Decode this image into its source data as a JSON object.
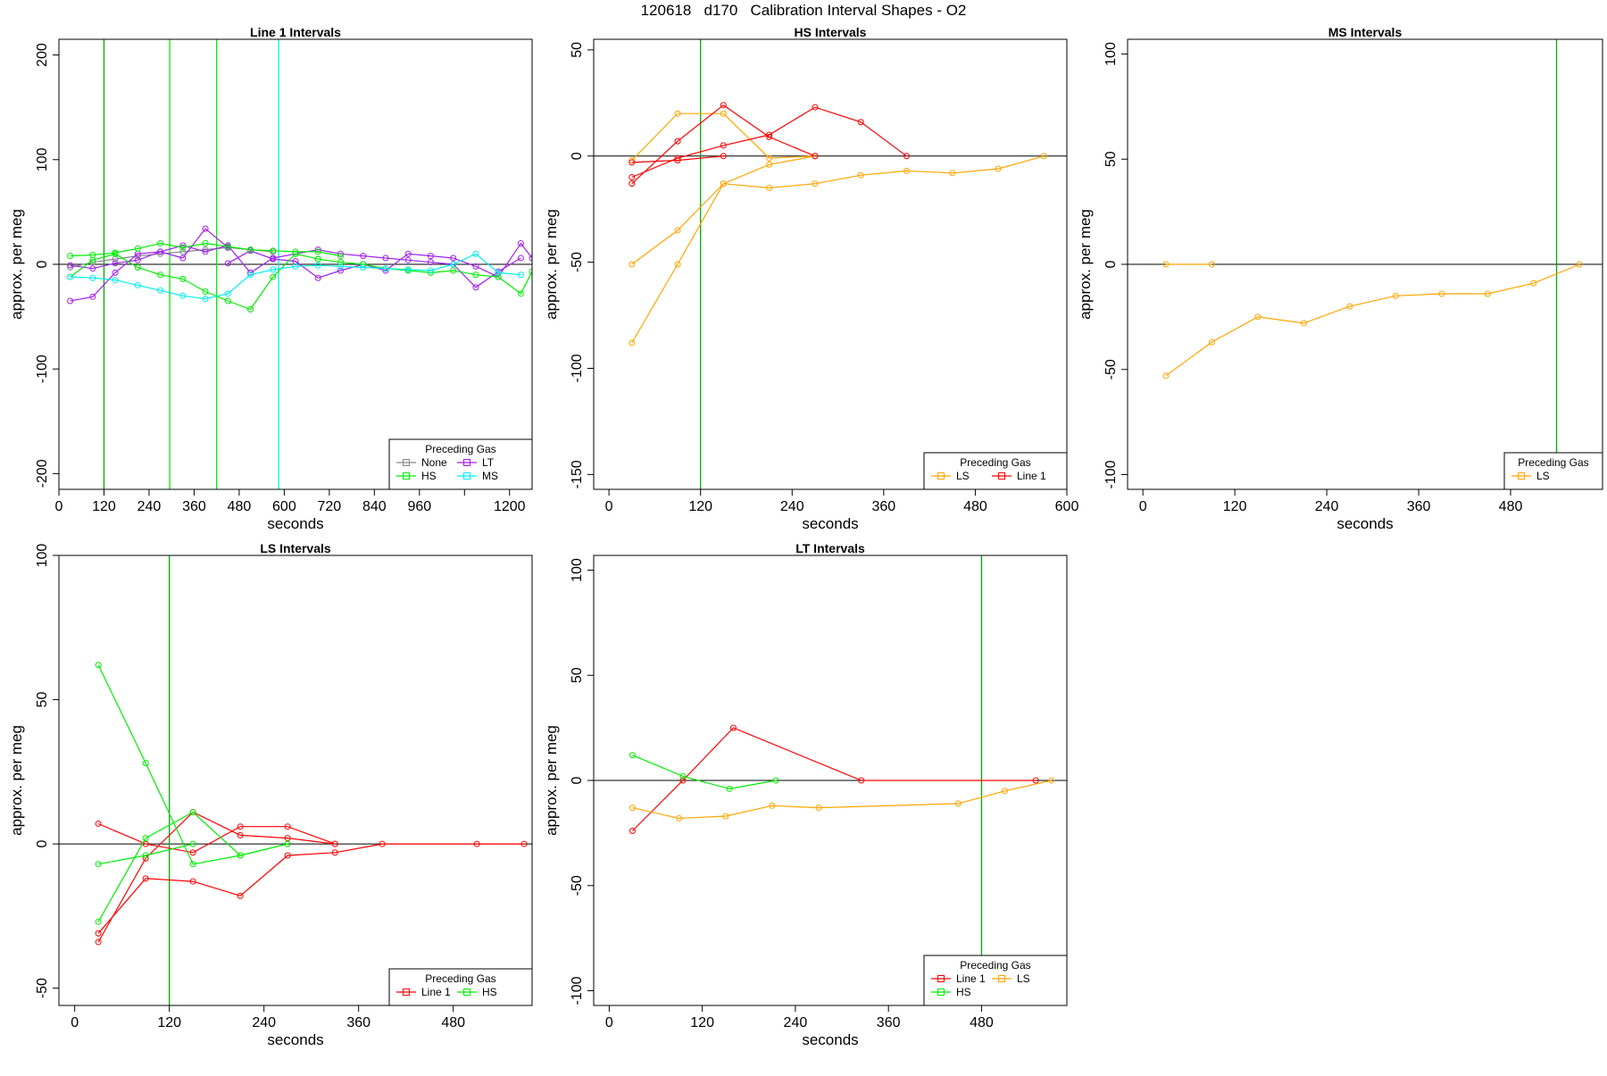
{
  "figure_title": "120618   d170   Calibration Interval Shapes - O2",
  "colors": {
    "None": "#888888",
    "LT": "#a020f0",
    "HS": "#00ee00",
    "MS": "#00eeee",
    "LS": "#ffa500",
    "Line 1": "#ff0000",
    "axis": "#000000",
    "grid": "#000000"
  },
  "chart_data": [
    {
      "type": "line",
      "title": "Line 1 Intervals",
      "xlabel": "seconds",
      "ylabel": "approx. per meg",
      "xlim": [
        0,
        1260
      ],
      "ylim": [
        -215,
        215
      ],
      "xticks": [
        0,
        120,
        240,
        360,
        480,
        600,
        720,
        840,
        960,
        1080,
        1200
      ],
      "xticklabels": [
        "0",
        "120",
        "240",
        "360",
        "480",
        "600",
        "720",
        "840",
        "960",
        "",
        "1200"
      ],
      "yticks": [
        -200,
        -100,
        0,
        100,
        200
      ],
      "vlines": [
        {
          "x": 120,
          "color": "#00aa00"
        },
        {
          "x": 295,
          "color": "#00ee00"
        },
        {
          "x": 420,
          "color": "#00ee00"
        },
        {
          "x": 585,
          "color": "#00eeee"
        }
      ],
      "legend": {
        "title": "Preceding Gas",
        "position": "bottom-right",
        "entries": [
          "None",
          "LT",
          "HS",
          "MS"
        ],
        "cols": 2
      },
      "series": [
        {
          "name": "None",
          "x": [
            30,
            90,
            150,
            210,
            270,
            330,
            390,
            450,
            510,
            570
          ],
          "y": [
            -3,
            2,
            5,
            8,
            10,
            12,
            14,
            16,
            14,
            12
          ]
        },
        {
          "name": "LT",
          "x": [
            30,
            90,
            150,
            210,
            270,
            330,
            390,
            450
          ],
          "y": [
            -35,
            -31,
            -8,
            10,
            12,
            6,
            34,
            16
          ]
        },
        {
          "name": "LT",
          "x": [
            30,
            90,
            150,
            210,
            270,
            330,
            390,
            450,
            510,
            570,
            630,
            690,
            750,
            810,
            870,
            930,
            990,
            1050,
            1110,
            1170,
            1230
          ],
          "y": [
            -1,
            -4,
            1,
            4,
            12,
            18,
            12,
            18,
            -8,
            6,
            10,
            14,
            10,
            8,
            6,
            4,
            2,
            0,
            -22,
            -7,
            6
          ]
        },
        {
          "name": "LT",
          "x": [
            450,
            510,
            570,
            630,
            690,
            750,
            810,
            870,
            930,
            990,
            1050,
            1110,
            1170,
            1230,
            1260
          ],
          "y": [
            1,
            13,
            5,
            3,
            -13,
            -6,
            0,
            -6,
            10,
            8,
            6,
            -2,
            -12,
            20,
            6
          ]
        },
        {
          "name": "HS",
          "x": [
            30,
            90,
            150,
            210,
            270,
            330,
            390,
            450,
            510,
            570,
            630,
            690,
            750
          ],
          "y": [
            8,
            9,
            11,
            15,
            20,
            16,
            20,
            17,
            14,
            13,
            12,
            12,
            8
          ]
        },
        {
          "name": "HS",
          "x": [
            30,
            90,
            150,
            210,
            270,
            330,
            390,
            450,
            510,
            570,
            630,
            690
          ],
          "y": [
            -12,
            4,
            10,
            -3,
            -10,
            -14,
            -26,
            -35,
            -43,
            -12,
            10,
            5
          ]
        },
        {
          "name": "HS",
          "x": [
            690,
            750,
            810,
            870,
            930,
            990,
            1050,
            1110,
            1170,
            1230,
            1260
          ],
          "y": [
            5,
            2,
            0,
            -4,
            -6,
            -8,
            -6,
            -10,
            -12,
            -28,
            -7
          ]
        },
        {
          "name": "MS",
          "x": [
            30,
            90,
            150,
            210,
            270,
            330,
            390,
            450,
            510,
            570,
            630,
            690,
            750,
            810,
            870,
            930,
            990,
            1050,
            1110,
            1170,
            1230
          ],
          "y": [
            -12,
            -13,
            -15,
            -20,
            -25,
            -30,
            -33,
            -28,
            -10,
            -5,
            -2,
            -1,
            -2,
            -3,
            -4,
            -5,
            -6,
            0,
            10,
            -8,
            -10
          ]
        }
      ]
    },
    {
      "type": "line",
      "title": "HS Intervals",
      "xlabel": "seconds",
      "ylabel": "approx. per meg",
      "xlim": [
        -20,
        600
      ],
      "ylim": [
        -157,
        55
      ],
      "xticks": [
        0,
        120,
        240,
        360,
        480,
        600
      ],
      "xticklabels": [
        "0",
        "120",
        "240",
        "360",
        "480",
        "600"
      ],
      "yticks": [
        -150,
        -100,
        -50,
        0,
        50
      ],
      "vlines": [
        {
          "x": 120,
          "color": "#00aa00"
        }
      ],
      "legend": {
        "title": "Preceding Gas",
        "position": "bottom-right",
        "entries": [
          "LS",
          "Line 1"
        ],
        "cols": 2
      },
      "series": [
        {
          "name": "LS",
          "x": [
            30,
            90,
            150,
            210,
            270
          ],
          "y": [
            -2,
            20,
            20,
            -1,
            0
          ]
        },
        {
          "name": "LS",
          "x": [
            30,
            90,
            150,
            210,
            270
          ],
          "y": [
            -51,
            -35,
            -13,
            -4,
            0
          ]
        },
        {
          "name": "LS",
          "x": [
            30,
            90,
            150,
            210,
            270,
            330,
            390,
            450,
            510,
            570
          ],
          "y": [
            -88,
            -51,
            -13,
            -15,
            -13,
            -9,
            -7,
            -8,
            -6,
            0
          ]
        },
        {
          "name": "Line 1",
          "x": [
            30,
            90,
            150,
            210,
            270
          ],
          "y": [
            -13,
            7,
            24,
            9,
            0
          ]
        },
        {
          "name": "Line 1",
          "x": [
            30,
            90,
            150,
            210,
            270,
            330,
            390
          ],
          "y": [
            -10,
            -1,
            5,
            10,
            23,
            16,
            0
          ]
        },
        {
          "name": "Line 1",
          "x": [
            30,
            90,
            150
          ],
          "y": [
            -3,
            -2,
            0
          ]
        }
      ]
    },
    {
      "type": "line",
      "title": "MS Intervals",
      "xlabel": "seconds",
      "ylabel": "approx. per meg",
      "xlim": [
        -20,
        600
      ],
      "ylim": [
        -107,
        107
      ],
      "xticks": [
        0,
        120,
        240,
        360,
        480
      ],
      "xticklabels": [
        "0",
        "120",
        "240",
        "360",
        "480"
      ],
      "yticks": [
        -100,
        -50,
        0,
        50,
        100
      ],
      "vlines": [
        {
          "x": 540,
          "color": "#00aa00"
        }
      ],
      "legend": {
        "title": "Preceding Gas",
        "position": "bottom-right",
        "entries": [
          "LS"
        ],
        "cols": 1
      },
      "series": [
        {
          "name": "LS",
          "x": [
            30,
            90
          ],
          "y": [
            0,
            0
          ]
        },
        {
          "name": "LS",
          "x": [
            30,
            90,
            150,
            210,
            270,
            330,
            390,
            450,
            510,
            570
          ],
          "y": [
            -53,
            -37,
            -25,
            -28,
            -20,
            -15,
            -14,
            -14,
            -9,
            0
          ]
        }
      ]
    },
    {
      "type": "line",
      "title": "LS Intervals",
      "xlabel": "seconds",
      "ylabel": "approx. per meg",
      "xlim": [
        -20,
        580
      ],
      "ylim": [
        -56,
        100
      ],
      "xticks": [
        0,
        120,
        240,
        360,
        480
      ],
      "xticklabels": [
        "0",
        "120",
        "240",
        "360",
        "480"
      ],
      "yticks": [
        -50,
        0,
        50,
        100
      ],
      "vlines": [
        {
          "x": 120,
          "color": "#00aa00"
        }
      ],
      "legend": {
        "title": "Preceding Gas",
        "position": "bottom-right",
        "entries": [
          "Line 1",
          "HS"
        ],
        "cols": 2
      },
      "series": [
        {
          "name": "Line 1",
          "x": [
            30,
            90,
            150,
            210,
            270,
            330
          ],
          "y": [
            7,
            0,
            -3,
            6,
            6,
            0
          ]
        },
        {
          "name": "Line 1",
          "x": [
            30,
            90,
            150,
            210,
            270,
            330
          ],
          "y": [
            -34,
            -5,
            11,
            3,
            2,
            0
          ]
        },
        {
          "name": "Line 1",
          "x": [
            30,
            90,
            150,
            210,
            270,
            330,
            390,
            510,
            570
          ],
          "y": [
            -31,
            -12,
            -13,
            -18,
            -4,
            -3,
            0,
            0,
            0
          ]
        },
        {
          "name": "HS",
          "x": [
            30,
            90,
            150,
            210,
            270
          ],
          "y": [
            62,
            28,
            -7,
            -4,
            0
          ]
        },
        {
          "name": "HS",
          "x": [
            30,
            90,
            150,
            210,
            270
          ],
          "y": [
            -27,
            2,
            11,
            -4,
            0
          ]
        },
        {
          "name": "HS",
          "x": [
            30,
            90,
            150
          ],
          "y": [
            -7,
            -4,
            0
          ]
        }
      ]
    },
    {
      "type": "line",
      "title": "LT Intervals",
      "xlabel": "seconds",
      "ylabel": "approx. per meg",
      "xlim": [
        -20,
        590
      ],
      "ylim": [
        -107,
        107
      ],
      "xticks": [
        0,
        120,
        240,
        360,
        480
      ],
      "xticklabels": [
        "0",
        "120",
        "240",
        "360",
        "480"
      ],
      "yticks": [
        -100,
        -50,
        0,
        50,
        100
      ],
      "vlines": [
        {
          "x": 480,
          "color": "#00aa00"
        }
      ],
      "legend": {
        "title": "Preceding Gas",
        "position": "bottom-right",
        "entries": [
          "Line 1",
          "LS",
          "HS"
        ],
        "cols": 2
      },
      "series": [
        {
          "name": "Line 1",
          "x": [
            30,
            95,
            160,
            325,
            550
          ],
          "y": [
            -24,
            0,
            25,
            0,
            0
          ]
        },
        {
          "name": "HS",
          "x": [
            30,
            95,
            155,
            215
          ],
          "y": [
            12,
            2,
            -4,
            0
          ]
        },
        {
          "name": "LS",
          "x": [
            30,
            90,
            150,
            210,
            270,
            450,
            510,
            570
          ],
          "y": [
            -13,
            -18,
            -17,
            -12,
            -13,
            -11,
            -5,
            0
          ]
        }
      ]
    }
  ]
}
